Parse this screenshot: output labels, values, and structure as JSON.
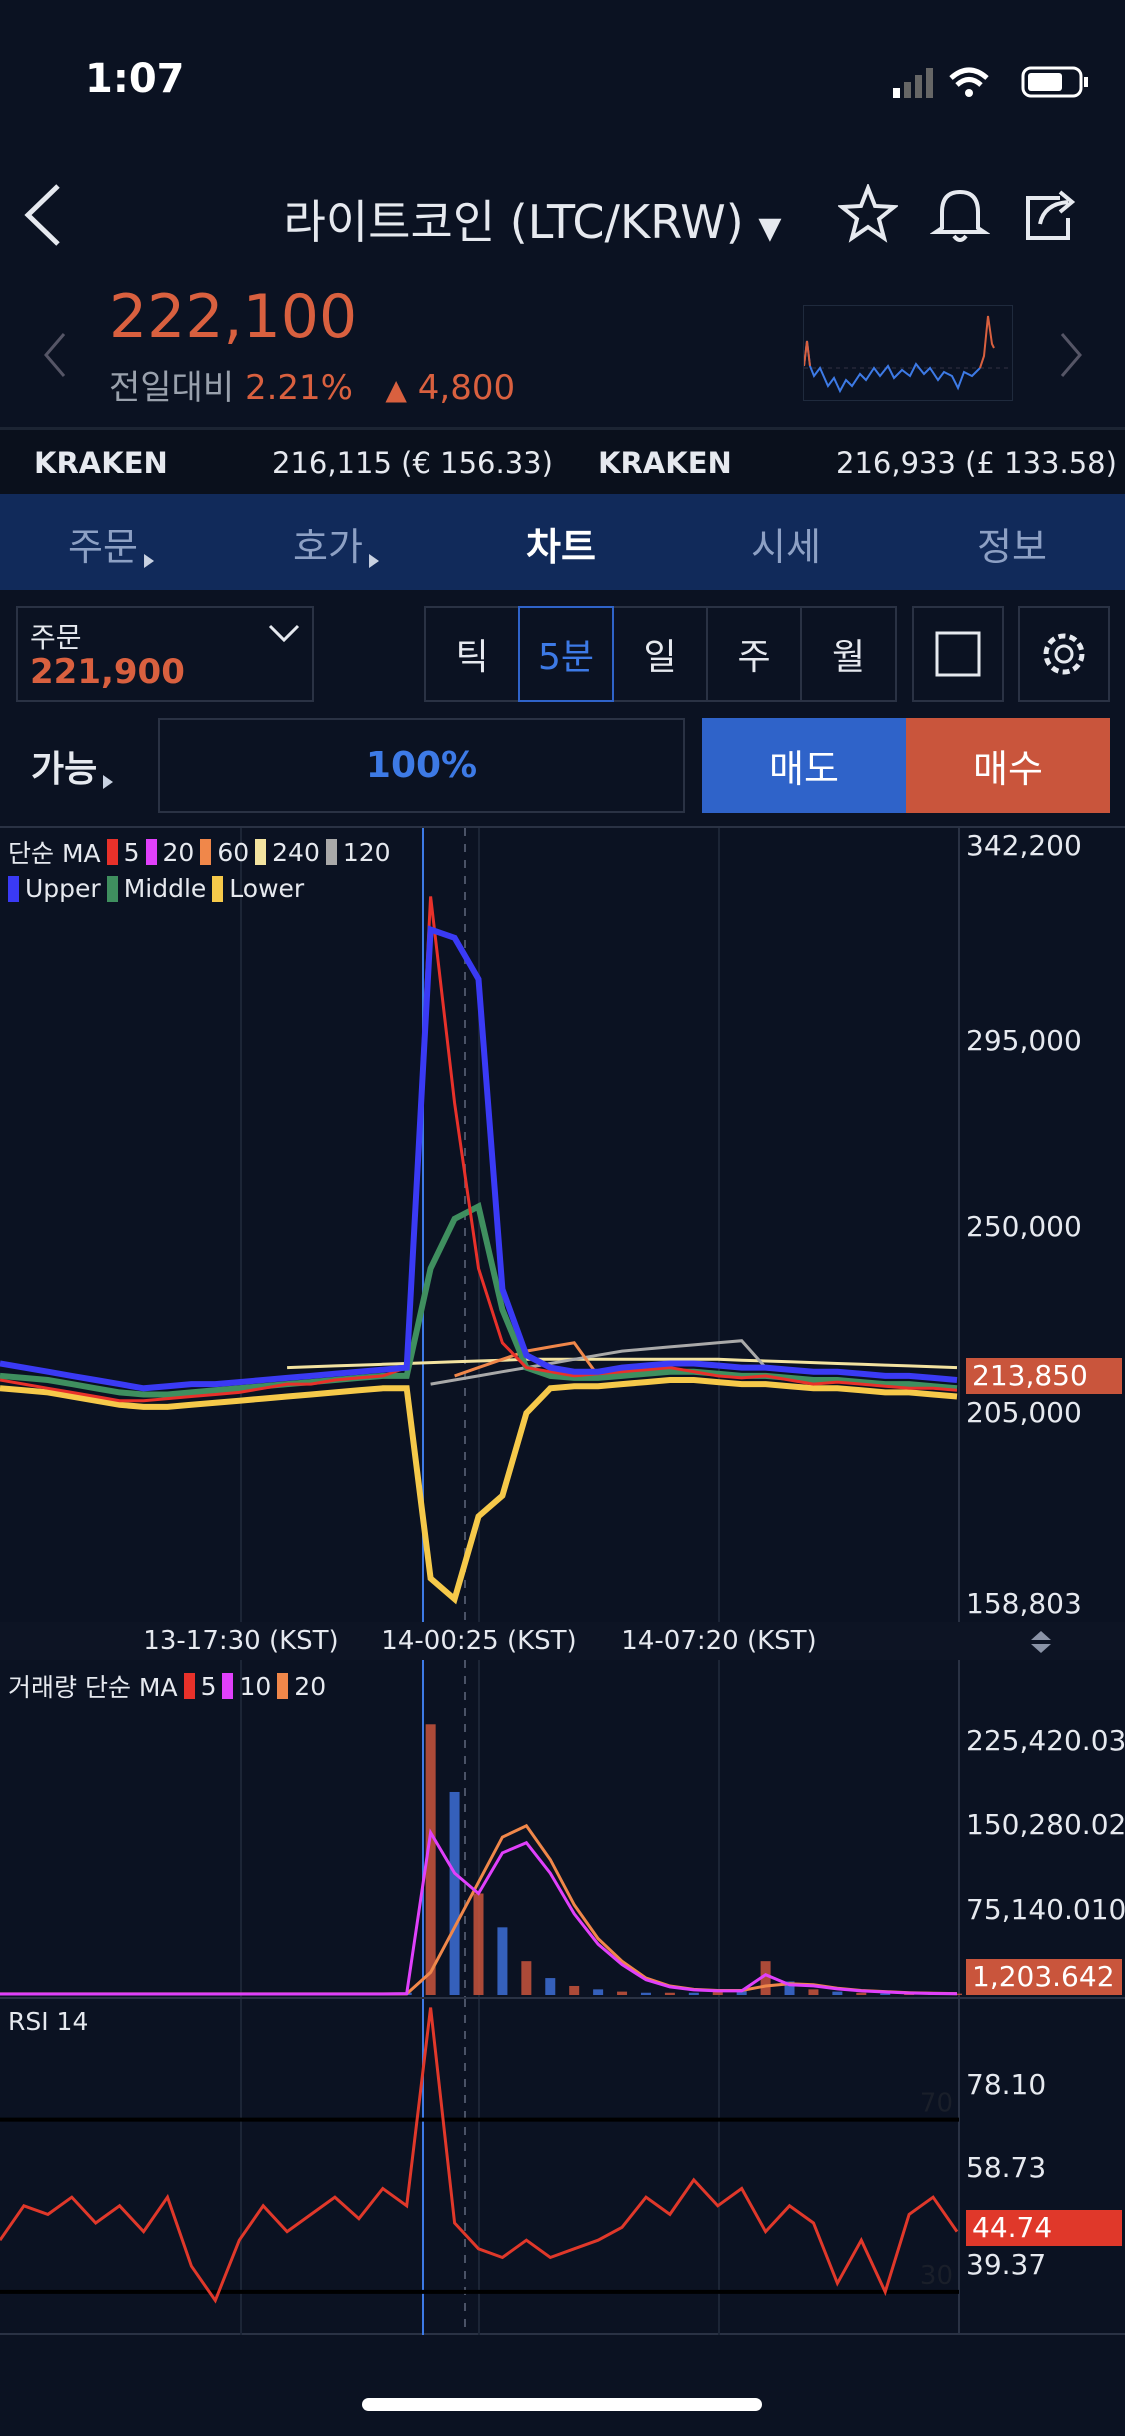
{
  "status": {
    "time": "1:07"
  },
  "header": {
    "title": "라이트코인 (LTC/KRW)"
  },
  "ticker": {
    "price": "222,100",
    "change_label": "전일대비",
    "change_pct": "2.21%",
    "change_abs": "4,800"
  },
  "exchanges": [
    {
      "name": "KRAKEN",
      "value": "216,115 (€ 156.33)"
    },
    {
      "name": "KRAKEN",
      "value": "216,933 (£ 133.58)"
    }
  ],
  "tabs": [
    {
      "label": "주문"
    },
    {
      "label": "호가"
    },
    {
      "label": "차트"
    },
    {
      "label": "시세"
    },
    {
      "label": "정보"
    }
  ],
  "active_tab": "차트",
  "order": {
    "label": "주문",
    "price": "221,900"
  },
  "intervals": [
    "틱",
    "5분",
    "일",
    "주",
    "월"
  ],
  "selected_interval": "5분",
  "trade": {
    "available_label": "가능",
    "percent": "100%",
    "sell": "매도",
    "buy": "매수"
  },
  "colors": {
    "up": "#d9603f",
    "sell": "#2f63c9",
    "buy": "#c9553c",
    "tab_bar": "#112a5a"
  },
  "chart_data": [
    {
      "type": "line",
      "panel": "price",
      "legend_title": "단순 MA",
      "legend": [
        {
          "name": "5",
          "color": "#e8312a"
        },
        {
          "name": "20",
          "color": "#e040fb"
        },
        {
          "name": "60",
          "color": "#f0874a"
        },
        {
          "name": "240",
          "color": "#f3e3a0"
        },
        {
          "name": "120",
          "color": "#a9a9a9"
        },
        {
          "name": "Upper",
          "color": "#3a3af5"
        },
        {
          "name": "Middle",
          "color": "#3f8f5f"
        },
        {
          "name": "Lower",
          "color": "#f6c94a"
        }
      ],
      "ylim": [
        158803,
        342200
      ],
      "yticks": [
        "342,200",
        "295,000",
        "250,000",
        "205,000",
        "158,803"
      ],
      "ytick_values": [
        342200,
        295000,
        250000,
        205000,
        158803
      ],
      "current": "213,850",
      "xticks": [
        "13-17:30 (KST)",
        "14-00:25 (KST)",
        "14-07:20 (KST)"
      ],
      "series": [
        {
          "name": "Upper",
          "values": [
            217000,
            216000,
            215000,
            214000,
            213000,
            212000,
            211000,
            211500,
            212000,
            212000,
            212500,
            213000,
            213500,
            214000,
            214500,
            215000,
            215500,
            216000,
            322000,
            320000,
            310000,
            235000,
            219000,
            216000,
            215000,
            215000,
            216000,
            216500,
            217000,
            217000,
            216500,
            216000,
            216000,
            215500,
            215000,
            215000,
            214500,
            214000,
            214000,
            213500,
            213000
          ]
        },
        {
          "name": "Middle",
          "values": [
            214000,
            213500,
            213000,
            212000,
            211000,
            210000,
            209500,
            209500,
            210000,
            210500,
            211000,
            211500,
            212000,
            212500,
            213000,
            213500,
            214000,
            214000,
            240000,
            252000,
            255000,
            230000,
            216000,
            214000,
            213500,
            213500,
            214000,
            214500,
            215000,
            215000,
            214500,
            214000,
            214000,
            213500,
            213000,
            213000,
            212500,
            212000,
            212000,
            211500,
            211000
          ]
        },
        {
          "name": "Lower",
          "values": [
            211000,
            210500,
            210000,
            209000,
            208000,
            207000,
            206500,
            206500,
            207000,
            207500,
            208000,
            208500,
            209000,
            209500,
            210000,
            210500,
            211000,
            211000,
            165000,
            160000,
            180000,
            185000,
            205000,
            211000,
            211500,
            211500,
            212000,
            212500,
            213000,
            213000,
            212500,
            212000,
            212000,
            211500,
            211000,
            211000,
            210500,
            210000,
            210000,
            209500,
            209000
          ]
        },
        {
          "name": "5",
          "values": [
            213000,
            212000,
            211000,
            210000,
            209000,
            208000,
            208000,
            208500,
            209000,
            209500,
            210000,
            211000,
            212000,
            212000,
            213000,
            213500,
            214000,
            216000,
            330000,
            280000,
            240000,
            222000,
            216000,
            215000,
            214000,
            214500,
            215000,
            215500,
            216000,
            215000,
            214000,
            213500,
            214000,
            213000,
            212000,
            212500,
            212000,
            211500,
            211000,
            211000,
            210500
          ]
        },
        {
          "name": "60",
          "values": [
            null,
            null,
            null,
            null,
            null,
            null,
            null,
            null,
            null,
            null,
            null,
            null,
            null,
            null,
            null,
            null,
            null,
            null,
            null,
            214000,
            216000,
            218000,
            220000,
            221000,
            222000,
            214000,
            null,
            null,
            null,
            null,
            null,
            null,
            null,
            null,
            null,
            null,
            null,
            null,
            null,
            null,
            null
          ]
        },
        {
          "name": "240",
          "values": [
            null,
            null,
            null,
            null,
            null,
            null,
            null,
            null,
            null,
            null,
            null,
            null,
            216000,
            216200,
            216400,
            216600,
            216800,
            217000,
            217200,
            217400,
            217600,
            217800,
            218000,
            218000,
            218000,
            218000,
            218000,
            218000,
            218000,
            218000,
            218000,
            217800,
            217600,
            217400,
            217200,
            217000,
            216800,
            216600,
            216400,
            216200,
            216000
          ]
        },
        {
          "name": "120",
          "values": [
            null,
            null,
            null,
            null,
            null,
            null,
            null,
            null,
            null,
            null,
            null,
            null,
            null,
            null,
            null,
            null,
            null,
            null,
            212000,
            213000,
            214000,
            215000,
            216000,
            217000,
            218000,
            219000,
            220000,
            220500,
            221000,
            221500,
            222000,
            222500,
            216000,
            null,
            null,
            null,
            null,
            null,
            null,
            null,
            null
          ]
        }
      ]
    },
    {
      "type": "bar",
      "panel": "volume",
      "legend_title": "거래량 단순 MA",
      "legend": [
        {
          "name": "5",
          "color": "#e8312a"
        },
        {
          "name": "10",
          "color": "#e040fb"
        },
        {
          "name": "20",
          "color": "#f0874a"
        }
      ],
      "ylim": [
        0,
        297000
      ],
      "yticks": [
        "225,420.030",
        "150,280.020",
        "75,140.010"
      ],
      "ytick_values": [
        225420.03,
        150280.02,
        75140.01
      ],
      "current": "1,203.642",
      "values": [
        1000,
        1000,
        1000,
        1000,
        1000,
        1000,
        1000,
        1000,
        1000,
        1000,
        1000,
        1000,
        1000,
        1000,
        1000,
        1000,
        1000,
        2000,
        240000,
        180000,
        90000,
        60000,
        30000,
        15000,
        8000,
        5000,
        3000,
        2000,
        2000,
        2000,
        3000,
        5000,
        30000,
        12000,
        5000,
        3000,
        2000,
        1500,
        1200,
        1200,
        1200
      ],
      "ma20": [
        1000,
        1000,
        1000,
        1000,
        1000,
        1000,
        1000,
        1000,
        1000,
        1000,
        1000,
        1000,
        1000,
        1000,
        1000,
        1000,
        1000,
        1000,
        20000,
        60000,
        100000,
        140000,
        150000,
        120000,
        80000,
        50000,
        30000,
        15000,
        8000,
        5000,
        4000,
        4000,
        8000,
        10000,
        9000,
        6000,
        4000,
        3000,
        2000,
        1500,
        1200
      ]
    },
    {
      "type": "line",
      "panel": "rsi",
      "legend_title": "RSI 14",
      "ylim": [
        20,
        98
      ],
      "yticks": [
        "78.10",
        "58.73",
        "39.37"
      ],
      "ytick_values": [
        78.1,
        58.73,
        39.37
      ],
      "levels": [
        70,
        30
      ],
      "current": "44.74",
      "values": [
        42,
        50,
        48,
        52,
        46,
        50,
        44,
        52,
        36,
        28,
        42,
        50,
        44,
        48,
        52,
        47,
        54,
        50,
        96,
        46,
        40,
        38,
        42,
        38,
        40,
        42,
        45,
        52,
        48,
        56,
        50,
        54,
        44,
        50,
        46,
        32,
        42,
        30,
        48,
        52,
        44
      ]
    }
  ]
}
